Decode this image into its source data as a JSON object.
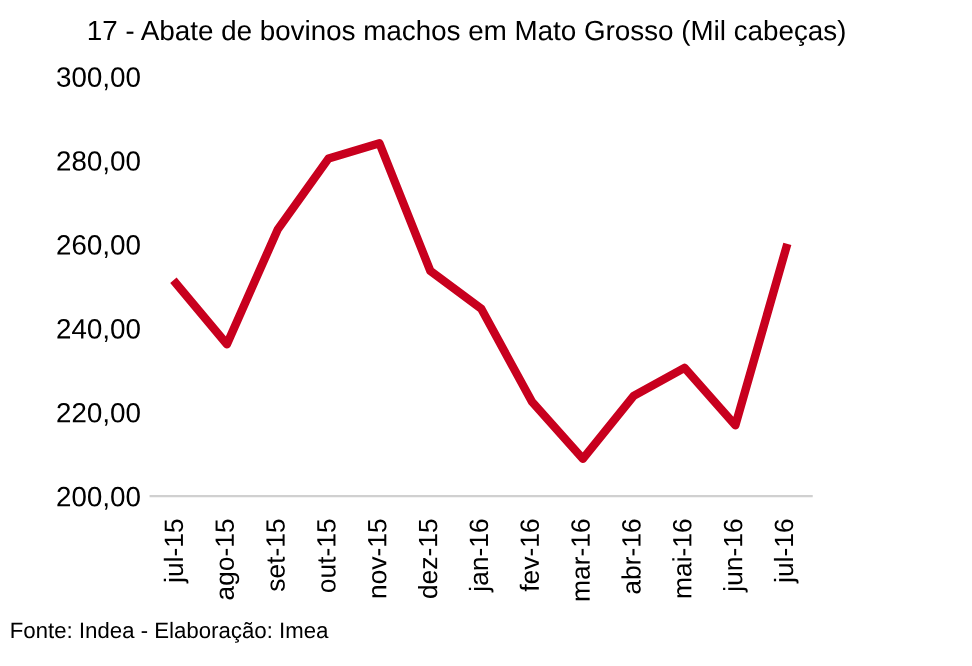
{
  "chart_data": {
    "type": "line",
    "title": "17 - Abate de bovinos machos em Mato Grosso (Mil cabeças)",
    "categories": [
      "jul-15",
      "ago-15",
      "set-15",
      "out-15",
      "nov-15",
      "dez-15",
      "jan-16",
      "fev-16",
      "mar-16",
      "abr-16",
      "mai-16",
      "jun-16",
      "jul-16"
    ],
    "series": [
      {
        "color": "#c8001e",
        "values": [
          250.7,
          236.2,
          263.6,
          280.5,
          284.1,
          253.7,
          244.7,
          222.5,
          208.9,
          223.9,
          230.6,
          216.9,
          259.2
        ]
      }
    ],
    "ylim": [
      200,
      300
    ],
    "yticks": [
      {
        "value": 200,
        "label": "200,00"
      },
      {
        "value": 220,
        "label": "220,00"
      },
      {
        "value": 240,
        "label": "240,00"
      },
      {
        "value": 260,
        "label": "260,00"
      },
      {
        "value": 280,
        "label": "280,00"
      },
      {
        "value": 300,
        "label": "300,00"
      }
    ],
    "grid": false,
    "legend": false,
    "annotations": [
      "Fonte: Indea - Elaboração: Imea"
    ]
  }
}
